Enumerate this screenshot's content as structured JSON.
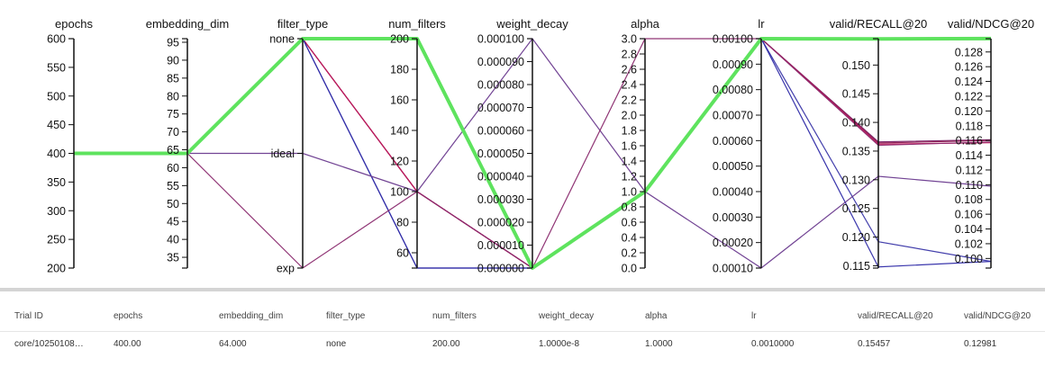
{
  "chart_data": {
    "type": "parallel_coordinates",
    "axes": [
      {
        "key": "epochs",
        "label": "epochs",
        "type": "numeric",
        "range": [
          200,
          600
        ],
        "ticks": [
          {
            "v": 200,
            "t": "200"
          },
          {
            "v": 250,
            "t": "250"
          },
          {
            "v": 300,
            "t": "300"
          },
          {
            "v": 350,
            "t": "350"
          },
          {
            "v": 400,
            "t": "400"
          },
          {
            "v": 450,
            "t": "450"
          },
          {
            "v": 500,
            "t": "500"
          },
          {
            "v": 550,
            "t": "550"
          },
          {
            "v": 600,
            "t": "600"
          }
        ]
      },
      {
        "key": "embedding_dim",
        "label": "embedding_dim",
        "type": "numeric",
        "range": [
          32,
          96
        ],
        "ticks": [
          {
            "v": 35,
            "t": "35"
          },
          {
            "v": 40,
            "t": "40"
          },
          {
            "v": 45,
            "t": "45"
          },
          {
            "v": 50,
            "t": "50"
          },
          {
            "v": 55,
            "t": "55"
          },
          {
            "v": 60,
            "t": "60"
          },
          {
            "v": 65,
            "t": "65"
          },
          {
            "v": 70,
            "t": "70"
          },
          {
            "v": 75,
            "t": "75"
          },
          {
            "v": 80,
            "t": "80"
          },
          {
            "v": 85,
            "t": "85"
          },
          {
            "v": 90,
            "t": "90"
          },
          {
            "v": 95,
            "t": "95"
          }
        ]
      },
      {
        "key": "filter_type",
        "label": "filter_type",
        "type": "categorical",
        "range": [
          0,
          2
        ],
        "ticks": [
          {
            "v": 0,
            "t": "exp"
          },
          {
            "v": 1,
            "t": "ideal"
          },
          {
            "v": 2,
            "t": "none"
          }
        ]
      },
      {
        "key": "num_filters",
        "label": "num_filters",
        "type": "numeric",
        "range": [
          50,
          200
        ],
        "ticks": [
          {
            "v": 60,
            "t": "60"
          },
          {
            "v": 80,
            "t": "80"
          },
          {
            "v": 100,
            "t": "100"
          },
          {
            "v": 120,
            "t": "120"
          },
          {
            "v": 140,
            "t": "140"
          },
          {
            "v": 160,
            "t": "160"
          },
          {
            "v": 180,
            "t": "180"
          },
          {
            "v": 200,
            "t": "200"
          }
        ]
      },
      {
        "key": "weight_decay",
        "label": "weight_decay",
        "type": "numeric",
        "range": [
          0,
          0.0001
        ],
        "ticks": [
          {
            "v": 0,
            "t": "0.000000"
          },
          {
            "v": 1e-05,
            "t": "0.000010"
          },
          {
            "v": 2e-05,
            "t": "0.000020"
          },
          {
            "v": 3e-05,
            "t": "0.000030"
          },
          {
            "v": 4e-05,
            "t": "0.000040"
          },
          {
            "v": 5e-05,
            "t": "0.000050"
          },
          {
            "v": 6e-05,
            "t": "0.000060"
          },
          {
            "v": 7e-05,
            "t": "0.000070"
          },
          {
            "v": 8e-05,
            "t": "0.000080"
          },
          {
            "v": 9e-05,
            "t": "0.000090"
          },
          {
            "v": 0.0001,
            "t": "0.000100"
          }
        ]
      },
      {
        "key": "alpha",
        "label": "alpha",
        "type": "numeric",
        "range": [
          0,
          3
        ],
        "ticks": [
          {
            "v": 0,
            "t": "0.0"
          },
          {
            "v": 0.2,
            "t": "0.2"
          },
          {
            "v": 0.4,
            "t": "0.4"
          },
          {
            "v": 0.6,
            "t": "0.6"
          },
          {
            "v": 0.8,
            "t": "0.8"
          },
          {
            "v": 1,
            "t": "1.0"
          },
          {
            "v": 1.2,
            "t": "1.2"
          },
          {
            "v": 1.4,
            "t": "1.4"
          },
          {
            "v": 1.6,
            "t": "1.6"
          },
          {
            "v": 1.8,
            "t": "1.8"
          },
          {
            "v": 2,
            "t": "2.0"
          },
          {
            "v": 2.2,
            "t": "2.2"
          },
          {
            "v": 2.4,
            "t": "2.4"
          },
          {
            "v": 2.6,
            "t": "2.6"
          },
          {
            "v": 2.8,
            "t": "2.8"
          },
          {
            "v": 3,
            "t": "3.0"
          }
        ]
      },
      {
        "key": "lr",
        "label": "lr",
        "type": "numeric",
        "range": [
          0.0001,
          0.001
        ],
        "ticks": [
          {
            "v": 0.0001,
            "t": "0.00010"
          },
          {
            "v": 0.0002,
            "t": "0.00020"
          },
          {
            "v": 0.0003,
            "t": "0.00030"
          },
          {
            "v": 0.0004,
            "t": "0.00040"
          },
          {
            "v": 0.0005,
            "t": "0.00050"
          },
          {
            "v": 0.0006,
            "t": "0.00060"
          },
          {
            "v": 0.0007,
            "t": "0.00070"
          },
          {
            "v": 0.0008,
            "t": "0.00080"
          },
          {
            "v": 0.0009,
            "t": "0.00090"
          },
          {
            "v": 0.001,
            "t": "0.00100"
          }
        ]
      },
      {
        "key": "recall",
        "label": "valid/RECALL@20",
        "type": "numeric",
        "range": [
          0.1146,
          0.1546
        ],
        "ticks": [
          {
            "v": 0.115,
            "t": "0.115"
          },
          {
            "v": 0.12,
            "t": "0.120"
          },
          {
            "v": 0.125,
            "t": "0.125"
          },
          {
            "v": 0.13,
            "t": "0.130"
          },
          {
            "v": 0.135,
            "t": "0.135"
          },
          {
            "v": 0.14,
            "t": "0.140"
          },
          {
            "v": 0.145,
            "t": "0.145"
          },
          {
            "v": 0.15,
            "t": "0.150"
          }
        ]
      },
      {
        "key": "ndcg",
        "label": "valid/NDCG@20",
        "type": "numeric",
        "range": [
          0.0987,
          0.1298
        ],
        "ticks": [
          {
            "v": 0.1,
            "t": "0.100"
          },
          {
            "v": 0.102,
            "t": "0.102"
          },
          {
            "v": 0.104,
            "t": "0.104"
          },
          {
            "v": 0.106,
            "t": "0.106"
          },
          {
            "v": 0.108,
            "t": "0.108"
          },
          {
            "v": 0.11,
            "t": "0.110"
          },
          {
            "v": 0.112,
            "t": "0.112"
          },
          {
            "v": 0.114,
            "t": "0.114"
          },
          {
            "v": 0.116,
            "t": "0.116"
          },
          {
            "v": 0.118,
            "t": "0.118"
          },
          {
            "v": 0.12,
            "t": "0.120"
          },
          {
            "v": 0.122,
            "t": "0.122"
          },
          {
            "v": 0.124,
            "t": "0.124"
          },
          {
            "v": 0.126,
            "t": "0.126"
          },
          {
            "v": 0.128,
            "t": "0.128"
          }
        ]
      }
    ],
    "trials": [
      {
        "values": [
          400,
          64,
          2,
          100,
          0,
          1,
          0.001,
          0.1366,
          0.1161
        ],
        "color": "#7a1f66",
        "highlight": false
      },
      {
        "values": [
          400,
          64,
          2,
          100,
          0,
          1,
          0.001,
          0.1364,
          0.116
        ],
        "color": "#8c1a50",
        "highlight": false
      },
      {
        "values": [
          400,
          64,
          2,
          100,
          0,
          1,
          0.001,
          0.1362,
          0.1157
        ],
        "color": "#c2185b",
        "highlight": false
      },
      {
        "values": [
          400,
          64,
          2,
          50,
          0,
          1,
          0.001,
          0.1192,
          0.0996
        ],
        "color": "#3a36a8",
        "highlight": false
      },
      {
        "values": [
          400,
          64,
          2,
          50,
          0,
          1,
          0.001,
          0.1148,
          0.0996
        ],
        "color": "#2f2ba8",
        "highlight": false
      },
      {
        "values": [
          400,
          64,
          1,
          100,
          0.0001,
          1,
          0.0001,
          0.1306,
          0.1098
        ],
        "color": "#6a3a8e",
        "highlight": false
      },
      {
        "values": [
          400,
          64,
          0,
          100,
          0,
          3,
          0.001,
          0.136,
          0.1158
        ],
        "color": "#8a2a6e",
        "highlight": false
      },
      {
        "values": [
          400,
          64,
          2,
          200,
          0,
          1,
          0.001,
          0.15457,
          0.12981
        ],
        "color": "#5ee35e",
        "highlight": true
      }
    ]
  },
  "table": {
    "headers": [
      "Trial ID",
      "epochs",
      "embedding_dim",
      "filter_type",
      "num_filters",
      "weight_decay",
      "alpha",
      "lr",
      "valid/RECALL@20",
      "valid/NDCG@20"
    ],
    "rows": [
      [
        "core/10250108…",
        "400.00",
        "64.000",
        "none",
        "200.00",
        "1.0000e-8",
        "1.0000",
        "0.0010000",
        "0.15457",
        "0.12981"
      ]
    ]
  }
}
